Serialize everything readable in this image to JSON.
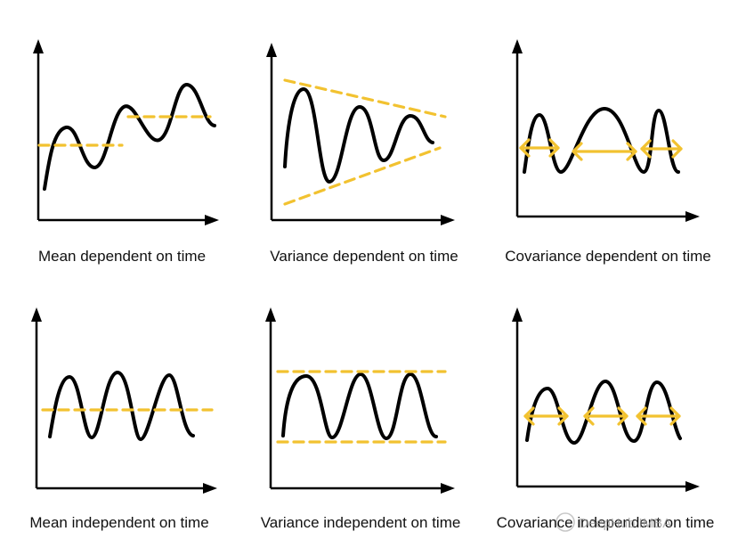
{
  "panels": [
    {
      "id": "mean-dependent",
      "caption": "Mean dependent on time"
    },
    {
      "id": "variance-dependent",
      "caption": "Variance dependent on time"
    },
    {
      "id": "covariance-dependent",
      "caption": "Covariance dependent on time"
    },
    {
      "id": "mean-independent",
      "caption": "Mean independent on time"
    },
    {
      "id": "variance-independent",
      "caption": "Variance independent on time"
    },
    {
      "id": "covariance-independent",
      "caption": "Covariance independent on time"
    }
  ],
  "watermark": "DeepHub IMBA",
  "colors": {
    "axis": "#000000",
    "series": "#000000",
    "guide": "#f2c230",
    "caption": "#111111"
  }
}
